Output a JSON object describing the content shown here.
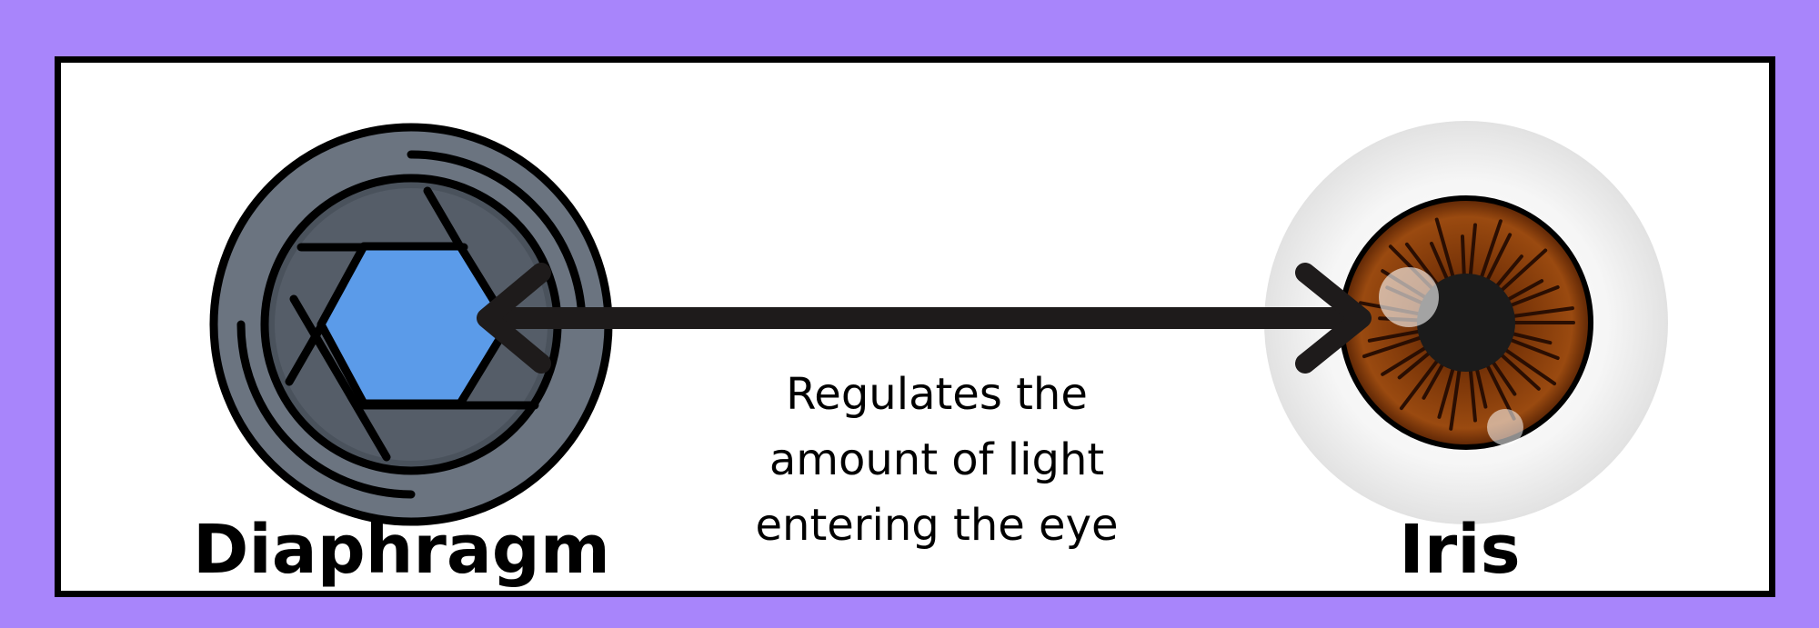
{
  "colors": {
    "background": "#a885fb",
    "panel": "#ffffff",
    "hexagon": "#5b9be9",
    "iris": "#8a3f0b"
  },
  "diaphragm": {
    "label": "Diaphragm",
    "icon": "camera-aperture-icon"
  },
  "iris": {
    "label": "Iris",
    "icon": "eye-iris-icon"
  },
  "connector": {
    "icon": "double-headed-arrow-icon"
  },
  "caption": {
    "line1": "Regulates the",
    "line2": "amount of light",
    "line3": "entering the eye"
  }
}
